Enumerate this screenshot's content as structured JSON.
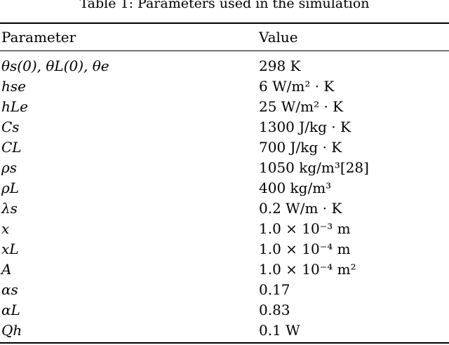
{
  "caption": "Table 1: Parameters used in the simulation",
  "header": {
    "parameter": "Parameter",
    "value": "Value"
  },
  "rows": [
    {
      "parameter": "θs(0), θL(0), θe",
      "value": "298 K"
    },
    {
      "parameter": "hse",
      "value": "6 W/m² · K"
    },
    {
      "parameter": "hLe",
      "value": "25 W/m² · K"
    },
    {
      "parameter": "Cs",
      "value": "1300 J/kg · K"
    },
    {
      "parameter": "CL",
      "value": "700 J/kg · K"
    },
    {
      "parameter": "ρs",
      "value": "1050 kg/m³[28]"
    },
    {
      "parameter": "ρL",
      "value": "400 kg/m³"
    },
    {
      "parameter": "λs",
      "value": "0.2 W/m · K"
    },
    {
      "parameter": "x",
      "value": "1.0 × 10⁻³ m"
    },
    {
      "parameter": "xL",
      "value": "1.0 × 10⁻⁴ m"
    },
    {
      "parameter": "A",
      "value": "1.0 × 10⁻⁴ m²"
    },
    {
      "parameter": "αs",
      "value": "0.17"
    },
    {
      "parameter": "αL",
      "value": "0.83"
    },
    {
      "parameter": "Qh",
      "value": "0.1 W"
    }
  ]
}
